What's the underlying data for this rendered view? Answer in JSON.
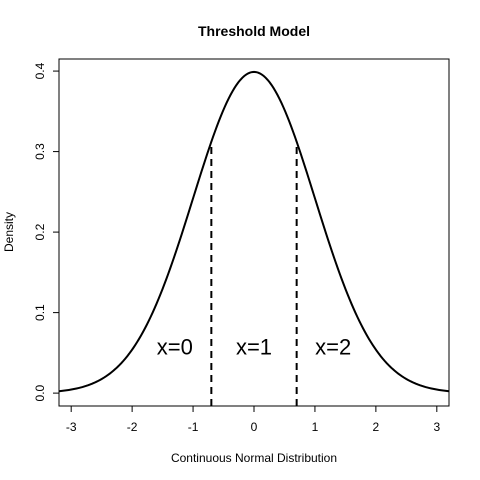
{
  "chart_data": {
    "type": "line",
    "title": "Threshold Model",
    "xlabel": "Continuous Normal Distribution",
    "ylabel": "Density",
    "xlim": [
      -3.2,
      3.2
    ],
    "ylim": [
      -0.016,
      0.415
    ],
    "x_ticks": [
      -3,
      -2,
      -1,
      0,
      1,
      2,
      3
    ],
    "x_tick_labels": [
      "-3",
      "-2",
      "-1",
      "0",
      "1",
      "2",
      "3"
    ],
    "y_ticks": [
      0.0,
      0.1,
      0.2,
      0.3,
      0.4
    ],
    "y_tick_labels": [
      "0.0",
      "0.1",
      "0.2",
      "0.3",
      "0.4"
    ],
    "grid": false,
    "series": [
      {
        "curve": "standard normal density",
        "x_range": [
          -3.2,
          3.2
        ],
        "mean": 0,
        "sd": 1,
        "color": "#000000"
      }
    ],
    "thresholds": [
      -0.7,
      0.7
    ],
    "threshold_style": "dashed",
    "annotations": [
      {
        "text": "x=0",
        "x": -1.3,
        "y": 0.048
      },
      {
        "text": "x=1",
        "x": 0.0,
        "y": 0.048
      },
      {
        "text": "x=2",
        "x": 1.3,
        "y": 0.048
      }
    ]
  }
}
